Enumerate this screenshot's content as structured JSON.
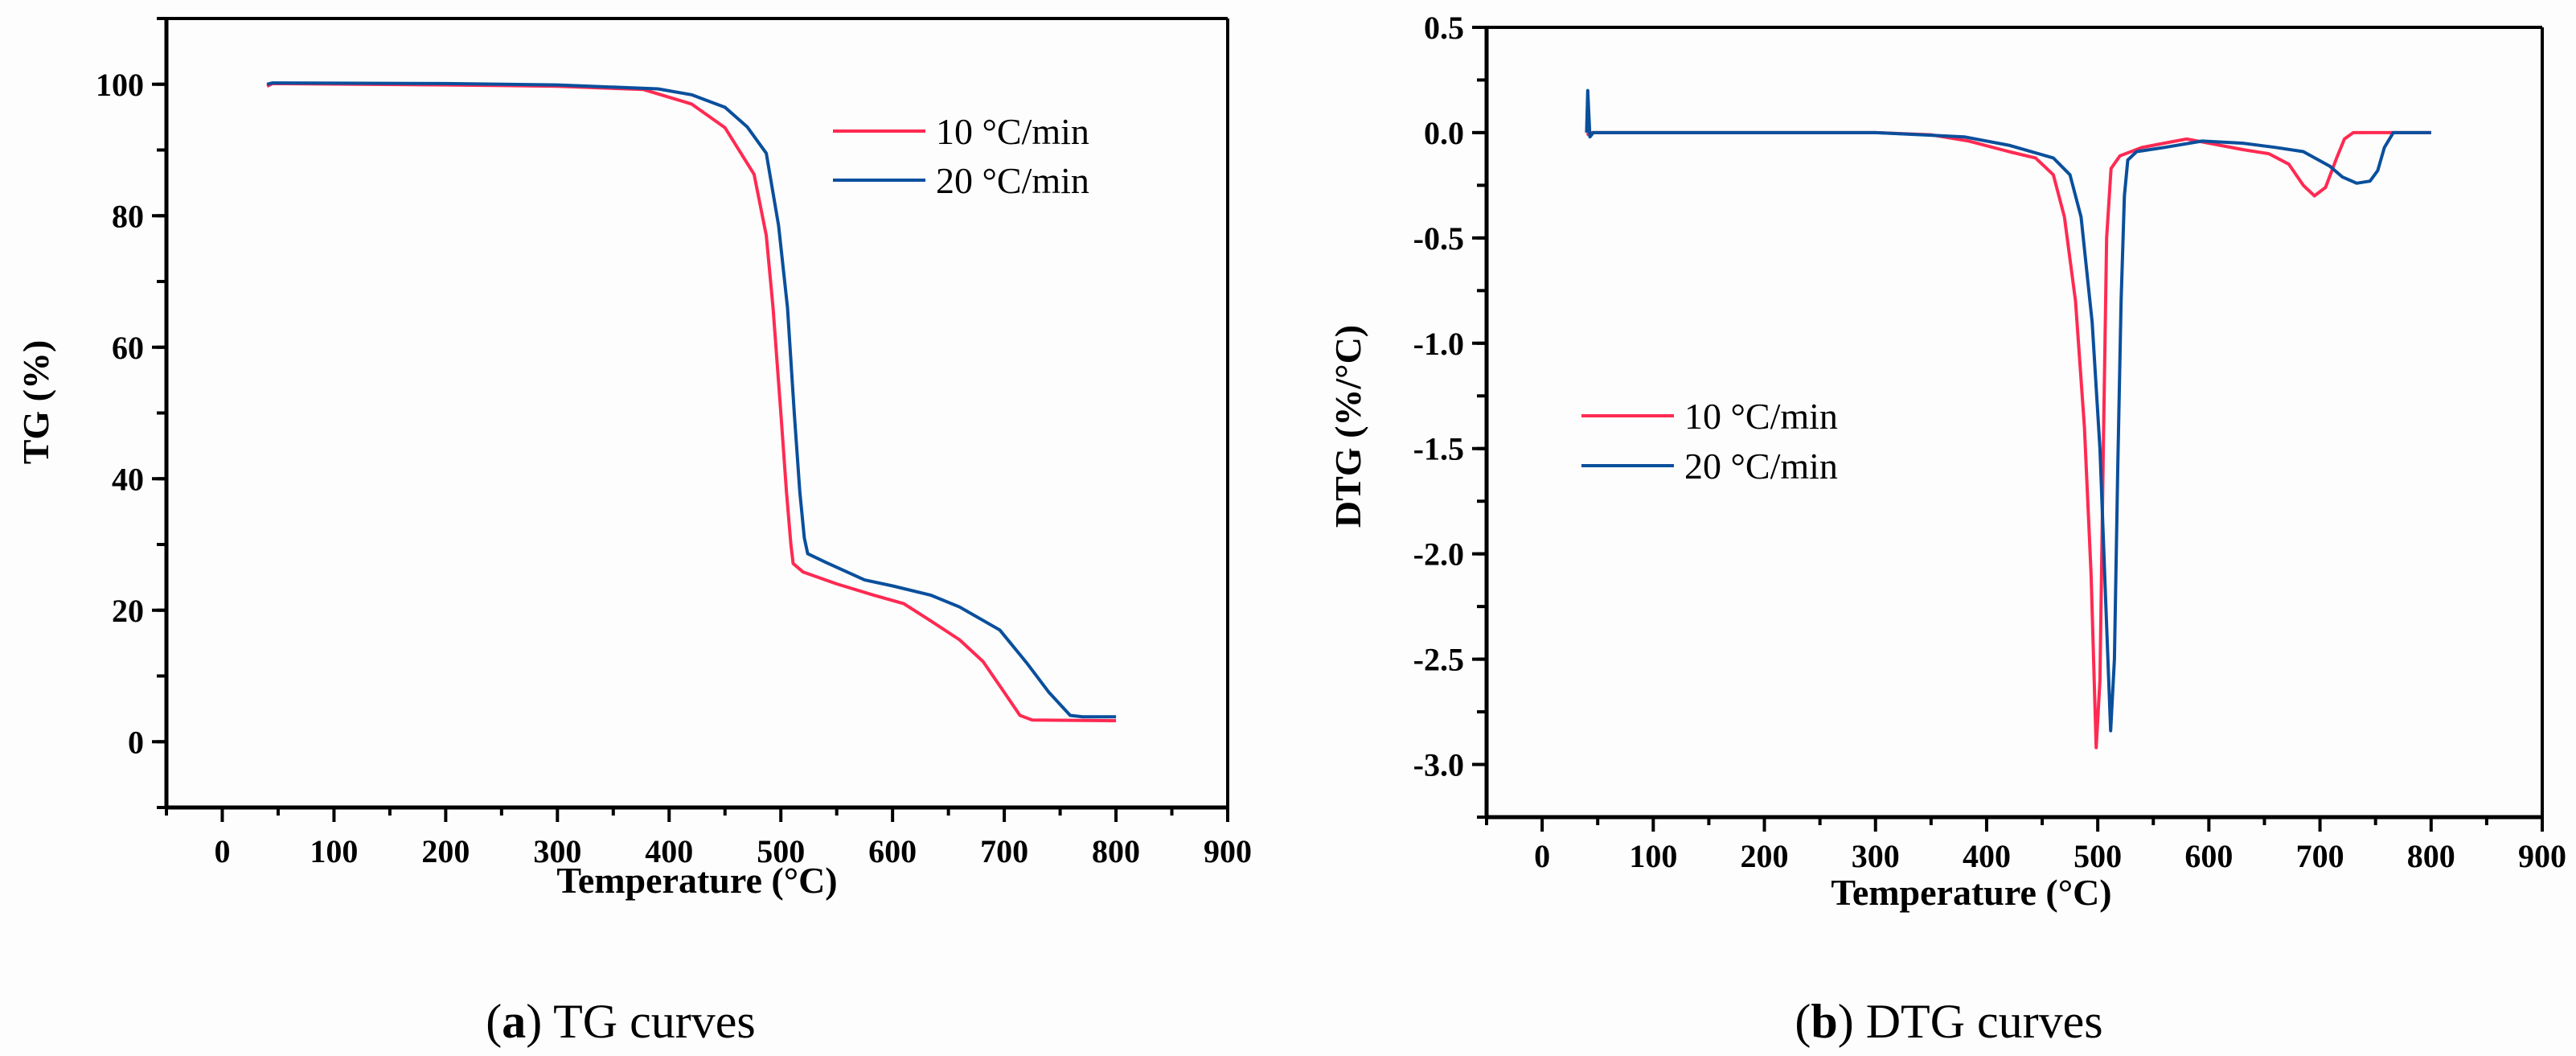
{
  "colors": {
    "rate10": "#ff2a52",
    "rate20": "#0a4f9c",
    "axis": "#000000"
  },
  "chart_data": [
    {
      "type": "line",
      "caption_label": "a",
      "caption_text": "TG curves",
      "xlabel": "Temperature (°C)",
      "ylabel": "TG (%)",
      "xlim": [
        -50,
        900
      ],
      "ylim": [
        -10,
        110
      ],
      "xticks": [
        "0",
        "100",
        "200",
        "300",
        "400",
        "500",
        "600",
        "700",
        "800",
        "900"
      ],
      "yticks": [
        "0",
        "20",
        "40",
        "60",
        "80",
        "100"
      ],
      "grid": false,
      "legend_position": "top-right",
      "series": [
        {
          "name": "10 °C/min",
          "color_key": "rate10",
          "points": [
            [
              40,
              99.7
            ],
            [
              45,
              100.1
            ],
            [
              200,
              99.9
            ],
            [
              300,
              99.7
            ],
            [
              377,
              99.2
            ],
            [
              420,
              97
            ],
            [
              450,
              93.4
            ],
            [
              476,
              86.3
            ],
            [
              487,
              77
            ],
            [
              493,
              66
            ],
            [
              500,
              50
            ],
            [
              505,
              38
            ],
            [
              509,
              30
            ],
            [
              511,
              27.1
            ],
            [
              520,
              25.8
            ],
            [
              550,
              24
            ],
            [
              583,
              22.3
            ],
            [
              610,
              21
            ],
            [
              634,
              18.4
            ],
            [
              660,
              15.5
            ],
            [
              681,
              12.2
            ],
            [
              700,
              7.5
            ],
            [
              714,
              4
            ],
            [
              725,
              3.3
            ],
            [
              800,
              3.2
            ]
          ]
        },
        {
          "name": "20 °C/min",
          "color_key": "rate20",
          "points": [
            [
              40,
              100
            ],
            [
              45,
              100.2
            ],
            [
              200,
              100.1
            ],
            [
              300,
              99.9
            ],
            [
              390,
              99.3
            ],
            [
              420,
              98.4
            ],
            [
              450,
              96.5
            ],
            [
              470,
              93.5
            ],
            [
              487,
              89.5
            ],
            [
              498,
              78.5
            ],
            [
              506,
              66
            ],
            [
              512,
              50
            ],
            [
              517,
              38
            ],
            [
              521,
              31
            ],
            [
              524,
              28.6
            ],
            [
              540,
              27.3
            ],
            [
              575,
              24.6
            ],
            [
              600,
              23.7
            ],
            [
              634,
              22.3
            ],
            [
              660,
              20.5
            ],
            [
              696,
              17
            ],
            [
              720,
              12
            ],
            [
              740,
              7.5
            ],
            [
              759,
              4
            ],
            [
              770,
              3.8
            ],
            [
              800,
              3.8
            ]
          ]
        }
      ]
    },
    {
      "type": "line",
      "caption_label": "b",
      "caption_text": "DTG curves",
      "xlabel": "Temperature (°C)",
      "ylabel": "DTG (%/°C)",
      "xlim": [
        -50,
        900
      ],
      "ylim": [
        -3.25,
        0.5
      ],
      "xticks": [
        "0",
        "100",
        "200",
        "300",
        "400",
        "500",
        "600",
        "700",
        "800",
        "900"
      ],
      "yticks": [
        "0.5",
        "0.0",
        "-0.5",
        "-1.0",
        "-1.5",
        "-2.0",
        "-2.5",
        "-3.0"
      ],
      "grid": false,
      "legend_position": "center-left",
      "series": [
        {
          "name": "10 °C/min",
          "color_key": "rate10",
          "points": [
            [
              40,
              -0.01
            ],
            [
              45,
              0
            ],
            [
              100,
              0
            ],
            [
              200,
              0
            ],
            [
              300,
              0
            ],
            [
              350,
              -0.01
            ],
            [
              384,
              -0.04
            ],
            [
              420,
              -0.09
            ],
            [
              444,
              -0.12
            ],
            [
              460,
              -0.2
            ],
            [
              470,
              -0.4
            ],
            [
              480,
              -0.8
            ],
            [
              488,
              -1.4
            ],
            [
              494,
              -2.1
            ],
            [
              498.6,
              -2.92
            ],
            [
              502,
              -2.6
            ],
            [
              505,
              -1.5
            ],
            [
              508,
              -0.5
            ],
            [
              512,
              -0.17
            ],
            [
              520,
              -0.11
            ],
            [
              540,
              -0.07
            ],
            [
              560,
              -0.05
            ],
            [
              580,
              -0.03
            ],
            [
              600,
              -0.05
            ],
            [
              630,
              -0.08
            ],
            [
              654,
              -0.1
            ],
            [
              672,
              -0.15
            ],
            [
              685,
              -0.25
            ],
            [
              695,
              -0.3
            ],
            [
              705,
              -0.26
            ],
            [
              715,
              -0.12
            ],
            [
              722,
              -0.03
            ],
            [
              730,
              0
            ],
            [
              800,
              0
            ]
          ]
        },
        {
          "name": "20 °C/min",
          "color_key": "rate20",
          "points": [
            [
              40,
              0
            ],
            [
              41,
              0.2
            ],
            [
              43,
              -0.02
            ],
            [
              46,
              0
            ],
            [
              300,
              0
            ],
            [
              380,
              -0.02
            ],
            [
              420,
              -0.06
            ],
            [
              460,
              -0.12
            ],
            [
              475,
              -0.2
            ],
            [
              485,
              -0.4
            ],
            [
              495,
              -0.9
            ],
            [
              502,
              -1.5
            ],
            [
              507,
              -2.2
            ],
            [
              511.6,
              -2.84
            ],
            [
              515,
              -2.5
            ],
            [
              518,
              -1.6
            ],
            [
              521,
              -0.8
            ],
            [
              524,
              -0.3
            ],
            [
              527,
              -0.13
            ],
            [
              535,
              -0.09
            ],
            [
              560,
              -0.07
            ],
            [
              594,
              -0.04
            ],
            [
              630,
              -0.05
            ],
            [
              660,
              -0.07
            ],
            [
              685,
              -0.09
            ],
            [
              709,
              -0.16
            ],
            [
              720,
              -0.21
            ],
            [
              733,
              -0.24
            ],
            [
              745,
              -0.23
            ],
            [
              752,
              -0.18
            ],
            [
              758,
              -0.07
            ],
            [
              766,
              0
            ],
            [
              800,
              0
            ]
          ]
        }
      ]
    }
  ]
}
